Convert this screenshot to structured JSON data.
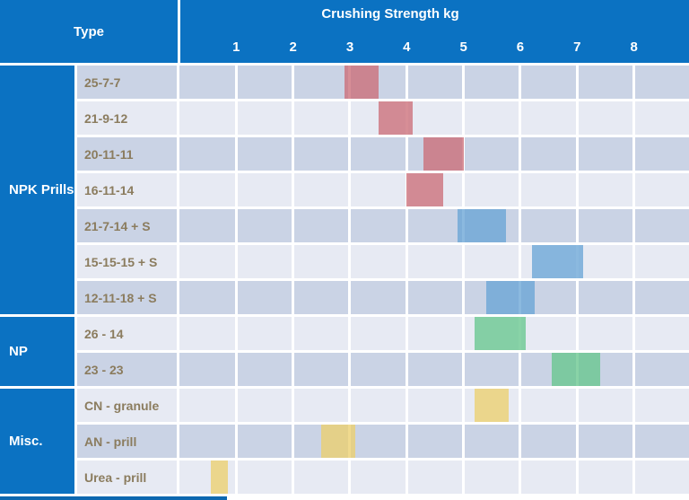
{
  "header": {
    "type_label": "Type",
    "axis_title": "Crushing Strength kg",
    "ticks": [
      "1",
      "2",
      "3",
      "4",
      "5",
      "6",
      "7",
      "8"
    ]
  },
  "groups": [
    {
      "label": "NPK Prills",
      "row_span": 7
    },
    {
      "label": "NP",
      "row_span": 2
    },
    {
      "label": "Misc.",
      "row_span": 3
    }
  ],
  "rows": [
    {
      "label": "25-7-7",
      "group": "NPK Prills",
      "range_kg": [
        2.9,
        3.5
      ],
      "family": "red"
    },
    {
      "label": "21-9-12",
      "group": "NPK Prills",
      "range_kg": [
        3.5,
        4.1
      ],
      "family": "red"
    },
    {
      "label": "20-11-11",
      "group": "NPK Prills",
      "range_kg": [
        4.3,
        5.0
      ],
      "family": "red"
    },
    {
      "label": "16-11-14",
      "group": "NPK Prills",
      "range_kg": [
        4.0,
        4.65
      ],
      "family": "red"
    },
    {
      "label": "21-7-14 + S",
      "group": "NPK Prills",
      "range_kg": [
        4.9,
        5.75
      ],
      "family": "blue"
    },
    {
      "label": "15-15-15 + S",
      "group": "NPK Prills",
      "range_kg": [
        6.2,
        7.1
      ],
      "family": "blue"
    },
    {
      "label": "12-11-18 + S",
      "group": "NPK Prills",
      "range_kg": [
        5.4,
        6.25
      ],
      "family": "blue"
    },
    {
      "label": "26 - 14",
      "group": "NP",
      "range_kg": [
        5.2,
        6.1
      ],
      "family": "green"
    },
    {
      "label": "23 - 23",
      "group": "NP",
      "range_kg": [
        6.55,
        7.4
      ],
      "family": "green"
    },
    {
      "label": "CN - granule",
      "group": "Misc.",
      "range_kg": [
        5.2,
        5.8
      ],
      "family": "yellow"
    },
    {
      "label": "AN - prill",
      "group": "Misc.",
      "range_kg": [
        2.5,
        3.1
      ],
      "family": "yellow"
    },
    {
      "label": "Urea - prill",
      "group": "Misc.",
      "range_kg": [
        0.55,
        0.85
      ],
      "family": "yellow"
    }
  ],
  "colors": {
    "header_blue": "#0B72C2",
    "bottom_border_blue": "#0D68B0",
    "row_dark": "#CAD3E5",
    "row_light": "#E7EAF3",
    "label_text": "#8B7C5E",
    "grid_white": "#FFFFFF",
    "bar_red": "rgba(204,110,120,0.78)",
    "bar_blue": "rgba(106,165,214,0.78)",
    "bar_green": "rgba(104,198,142,0.78)",
    "bar_yellow": "rgba(236,208,110,0.78)"
  },
  "chart_data": {
    "type": "bar",
    "subtype": "horizontal-range-bars",
    "title": "Crushing Strength kg",
    "xlabel": "Crushing Strength kg",
    "ylabel": "Type",
    "xlim": [
      0,
      9
    ],
    "x_ticks": [
      1,
      2,
      3,
      4,
      5,
      6,
      7,
      8
    ],
    "grid": true,
    "legend": false,
    "categories": [
      "25-7-7",
      "21-9-12",
      "20-11-11",
      "16-11-14",
      "21-7-14 + S",
      "15-15-15 + S",
      "12-11-18 + S",
      "26 - 14",
      "23 - 23",
      "CN - granule",
      "AN - prill",
      "Urea - prill"
    ],
    "row_groups": [
      "NPK Prills",
      "NPK Prills",
      "NPK Prills",
      "NPK Prills",
      "NPK Prills",
      "NPK Prills",
      "NPK Prills",
      "NP",
      "NP",
      "Misc.",
      "Misc.",
      "Misc."
    ],
    "ranges_kg": [
      [
        2.9,
        3.5
      ],
      [
        3.5,
        4.1
      ],
      [
        4.3,
        5.0
      ],
      [
        4.0,
        4.65
      ],
      [
        4.9,
        5.75
      ],
      [
        6.2,
        7.1
      ],
      [
        5.4,
        6.25
      ],
      [
        5.2,
        6.1
      ],
      [
        6.55,
        7.4
      ],
      [
        5.2,
        5.8
      ],
      [
        2.5,
        3.1
      ],
      [
        0.55,
        0.85
      ]
    ],
    "bar_color_families": [
      "red",
      "red",
      "red",
      "red",
      "blue",
      "blue",
      "blue",
      "green",
      "green",
      "yellow",
      "yellow",
      "yellow"
    ]
  }
}
